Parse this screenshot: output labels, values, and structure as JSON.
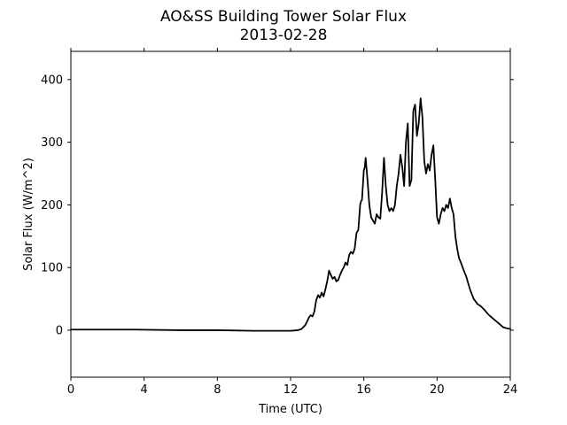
{
  "chart_data": {
    "type": "line",
    "title": "AO&SS Building Tower Solar Flux",
    "subtitle": "2013-02-28",
    "xlabel": "Time (UTC)",
    "ylabel": "Solar Flux (W/m^2)",
    "xlim": [
      0,
      24
    ],
    "ylim": [
      -75,
      445
    ],
    "xticks": [
      0,
      4,
      8,
      12,
      16,
      20,
      24
    ],
    "yticks": [
      0,
      100,
      200,
      300,
      400
    ],
    "xtick_labels": [
      "0",
      "4",
      "8",
      "12",
      "16",
      "20",
      "24"
    ],
    "ytick_labels": [
      "0",
      "100",
      "200",
      "300",
      "400"
    ],
    "grid": false,
    "series": [
      {
        "color": "#000000",
        "x": [
          0,
          2,
          3.5,
          6,
          8,
          10,
          12,
          12.4,
          12.6,
          12.8,
          12.9,
          13.0,
          13.1,
          13.2,
          13.3,
          13.4,
          13.5,
          13.6,
          13.7,
          13.8,
          13.9,
          14.0,
          14.1,
          14.2,
          14.3,
          14.4,
          14.5,
          14.6,
          14.7,
          14.8,
          14.9,
          15.0,
          15.1,
          15.2,
          15.3,
          15.4,
          15.5,
          15.6,
          15.7,
          15.8,
          15.85,
          15.9,
          16.0,
          16.05,
          16.1,
          16.2,
          16.3,
          16.4,
          16.5,
          16.6,
          16.7,
          16.8,
          16.9,
          17.0,
          17.1,
          17.2,
          17.3,
          17.4,
          17.5,
          17.6,
          17.7,
          17.8,
          17.9,
          18.0,
          18.1,
          18.2,
          18.3,
          18.4,
          18.5,
          18.6,
          18.7,
          18.8,
          18.9,
          19.0,
          19.1,
          19.2,
          19.3,
          19.4,
          19.5,
          19.6,
          19.7,
          19.8,
          19.9,
          20.0,
          20.1,
          20.2,
          20.3,
          20.4,
          20.5,
          20.6,
          20.7,
          20.8,
          20.9,
          21.0,
          21.1,
          21.2,
          21.3,
          21.4,
          21.6,
          21.8,
          22.0,
          22.2,
          22.4,
          22.6,
          22.8,
          23.0,
          23.2,
          23.4,
          23.6,
          23.8,
          24.0
        ],
        "y": [
          1,
          1,
          1,
          0,
          0,
          -1,
          -1,
          0,
          2,
          8,
          14,
          20,
          24,
          22,
          30,
          48,
          56,
          52,
          60,
          54,
          65,
          78,
          95,
          88,
          82,
          85,
          78,
          80,
          88,
          95,
          100,
          108,
          104,
          120,
          125,
          122,
          130,
          155,
          160,
          200,
          206,
          208,
          255,
          260,
          275,
          240,
          200,
          180,
          175,
          170,
          185,
          180,
          178,
          220,
          275,
          230,
          200,
          190,
          195,
          190,
          200,
          230,
          250,
          280,
          260,
          230,
          300,
          330,
          230,
          240,
          350,
          360,
          310,
          330,
          370,
          340,
          270,
          250,
          265,
          255,
          280,
          295,
          240,
          180,
          170,
          185,
          195,
          190,
          200,
          195,
          210,
          195,
          185,
          150,
          130,
          115,
          108,
          100,
          85,
          65,
          50,
          42,
          38,
          32,
          25,
          20,
          15,
          10,
          5,
          3,
          2
        ]
      }
    ]
  }
}
